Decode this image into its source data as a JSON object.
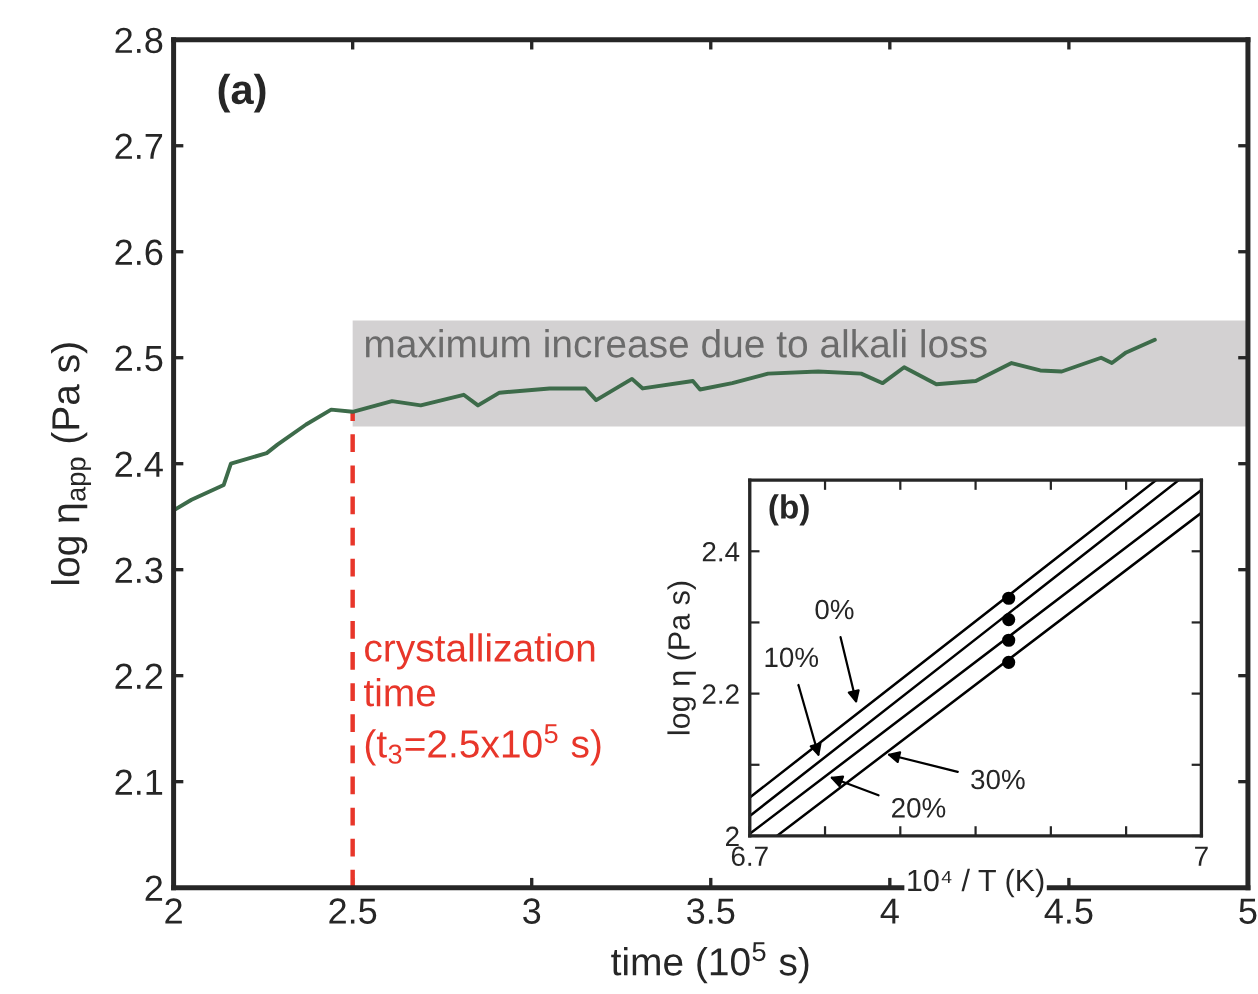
{
  "chart_data": [
    {
      "type": "line",
      "xlabel": "time (10$^{5}$ s)",
      "ylabel": "log η$_{app}$ (Pa s)",
      "color": "#3d6b4a",
      "x": [
        2.0,
        2.05,
        2.14,
        2.16,
        2.26,
        2.29,
        2.37,
        2.44,
        2.5,
        2.61,
        2.69,
        2.81,
        2.85,
        2.91,
        3.05,
        3.15,
        3.18,
        3.28,
        3.31,
        3.45,
        3.47,
        3.56,
        3.66,
        3.8,
        3.92,
        3.98,
        4.04,
        4.13,
        4.24,
        4.34,
        4.42,
        4.48,
        4.59,
        4.62,
        4.66,
        4.74
      ],
      "values": [
        2.356,
        2.366,
        2.38,
        2.4,
        2.41,
        2.418,
        2.437,
        2.451,
        2.449,
        2.459,
        2.455,
        2.465,
        2.455,
        2.467,
        2.471,
        2.471,
        2.46,
        2.48,
        2.471,
        2.478,
        2.47,
        2.476,
        2.485,
        2.487,
        2.485,
        2.476,
        2.491,
        2.475,
        2.478,
        2.495,
        2.488,
        2.487,
        2.5,
        2.495,
        2.505,
        2.517
      ],
      "xlim": [
        2,
        5
      ],
      "ylim": [
        2,
        2.8
      ],
      "xticks": [
        2,
        2.5,
        3,
        3.5,
        4,
        4.5,
        5
      ],
      "yticks": [
        2,
        2.1,
        2.2,
        2.3,
        2.4,
        2.5,
        2.6,
        2.7,
        2.8
      ],
      "bands": [
        {
          "axis": "y",
          "from": 2.435,
          "to": 2.535,
          "label": "maximum increase due to alkali loss",
          "color": "#d3d1d2"
        }
      ],
      "ref_lines": [
        {
          "axis": "x",
          "value": 2.5,
          "label": "crystallization\ntime\n(t$_{3}$=2.5x10$^{5}$ s)",
          "color": "#e8362a",
          "line_style": "dashed"
        }
      ],
      "annotations": [
        "(a)"
      ],
      "grid": false
    },
    {
      "type": "line",
      "xlabel": "10⁴ / T (K)",
      "ylabel": "log η (Pa s)",
      "series": [
        {
          "x": [
            6.7,
            6.97
          ],
          "values": [
            2.054,
            2.5
          ],
          "color": "#000000"
        },
        {
          "x": [
            6.7,
            6.985
          ],
          "values": [
            2.028,
            2.5
          ],
          "color": "#000000"
        },
        {
          "x": [
            6.7,
            7.0
          ],
          "values": [
            2.003,
            2.486
          ],
          "color": "#000000"
        },
        {
          "x": [
            6.718,
            7.0
          ],
          "values": [
            2.0,
            2.454
          ],
          "color": "#000000"
        },
        {
          "type": "scatter",
          "x": [
            6.872,
            6.872,
            6.872,
            6.872
          ],
          "values": [
            2.334,
            2.304,
            2.275,
            2.244
          ],
          "color": "#000000",
          "marker": "circle"
        }
      ],
      "xlim": [
        6.7,
        7
      ],
      "ylim": [
        2,
        2.5
      ],
      "xticks": [
        6.7,
        {
          "value": 6.75,
          "label": null
        },
        {
          "value": 6.8,
          "label": null
        },
        {
          "value": 6.85,
          "label": null
        },
        {
          "value": 6.9,
          "label": null
        },
        {
          "value": 6.95,
          "label": null
        },
        7
      ],
      "yticks": [
        2,
        {
          "value": 2.1,
          "label": null
        },
        2.2,
        {
          "value": 2.3,
          "label": null
        },
        2.4
      ],
      "annotations": [
        "(b)",
        {
          "text": "0%",
          "x": 6.771,
          "y": 2.186
        },
        {
          "text": "10%",
          "x": 6.746,
          "y": 2.111
        },
        {
          "text": "30%",
          "x": 6.791,
          "y": 2.115
        },
        {
          "text": "20%",
          "x": 6.753,
          "y": 2.083
        }
      ],
      "grid": false
    }
  ]
}
